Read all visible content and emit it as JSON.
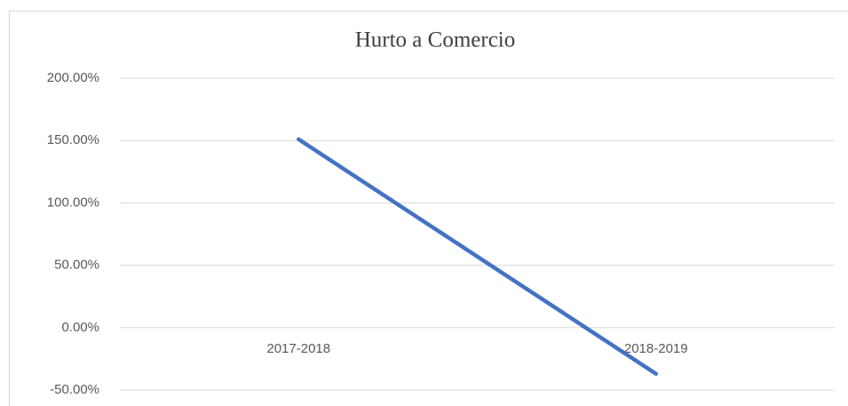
{
  "chart_data": {
    "type": "line",
    "title": "Hurto a Comercio",
    "categories": [
      "2017-2018",
      "2018-2019"
    ],
    "series": [
      {
        "name": "Hurto a Comercio",
        "color": "#4472c4",
        "values": [
          151,
          -37
        ]
      }
    ],
    "ylim": [
      -50,
      200
    ],
    "yticks": [
      {
        "value": -50,
        "label": "-50.00%"
      },
      {
        "value": 0,
        "label": "0.00%"
      },
      {
        "value": 50,
        "label": "50.00%"
      },
      {
        "value": 100,
        "label": "100.00%"
      },
      {
        "value": 150,
        "label": "150.00%"
      },
      {
        "value": 200,
        "label": "200.00%"
      }
    ],
    "grid": true
  }
}
